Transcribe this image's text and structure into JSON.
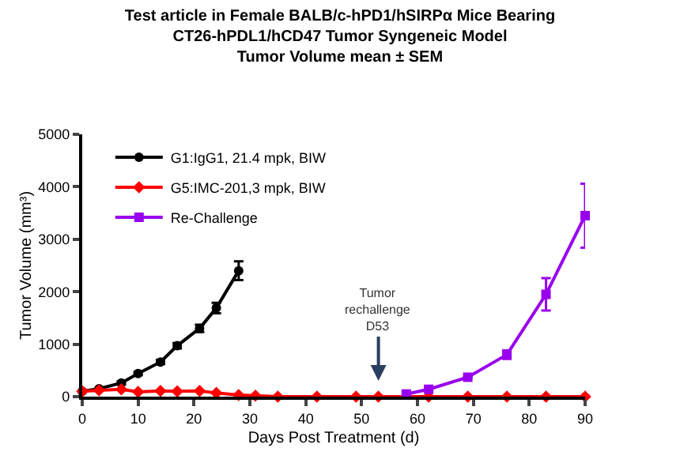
{
  "chart_data": {
    "type": "line",
    "title": "Test article in Female BALB/c-hPD1/hSIRPα Mice Bearing\nCT26-hPDL1/hCD47 Tumor Syngeneic Model\nTumor Volume mean ± SEM",
    "xlabel": "Days Post Treatment (d)",
    "ylabel": "Tumor Volume (mm³)",
    "xlim": [
      0,
      90
    ],
    "xticks": [
      0,
      10,
      20,
      30,
      40,
      50,
      60,
      70,
      80,
      90
    ],
    "ylim": [
      0,
      5000
    ],
    "yticks": [
      0,
      1000,
      2000,
      3000,
      4000,
      5000
    ],
    "legend": "top left",
    "series": [
      {
        "name": "G1:IgG1, 21.4 mpk, BIW",
        "color": "#000000",
        "marker": "circle",
        "x": [
          0,
          3,
          7,
          10,
          14,
          17,
          21,
          24,
          28
        ],
        "values": [
          100,
          150,
          260,
          440,
          660,
          970,
          1300,
          1690,
          2400
        ],
        "errors": [
          null,
          null,
          30,
          30,
          40,
          50,
          70,
          100,
          180
        ]
      },
      {
        "name": "G5:IMC-201,3 mpk, BIW",
        "color": "#ff0000",
        "marker": "diamond",
        "x": [
          0,
          3,
          7,
          10,
          14,
          17,
          21,
          24,
          28,
          31,
          35,
          42,
          49,
          53,
          62,
          69,
          76,
          83,
          90
        ],
        "values": [
          100,
          120,
          140,
          90,
          110,
          100,
          110,
          70,
          30,
          20,
          0,
          0,
          0,
          0,
          0,
          0,
          0,
          0,
          0
        ]
      },
      {
        "name": "Re-Challenge",
        "color": "#9900ee",
        "marker": "square",
        "x": [
          58,
          62,
          69,
          76,
          83,
          90
        ],
        "values": [
          50,
          140,
          370,
          800,
          1950,
          3450
        ],
        "errors": [
          null,
          null,
          null,
          80,
          310,
          610
        ]
      }
    ],
    "annotations": [
      "Tumor\nrechallenge\nD53"
    ]
  }
}
